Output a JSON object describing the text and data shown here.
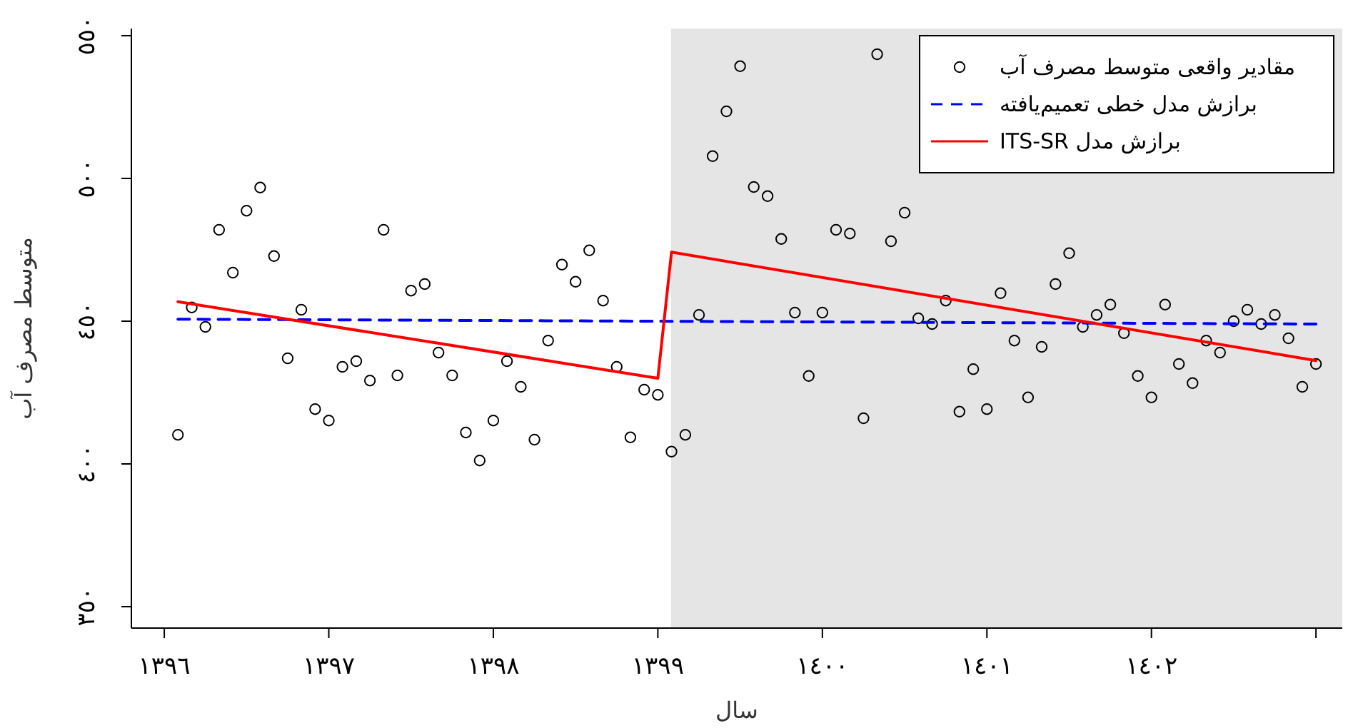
{
  "chart_data": {
    "type": "scatter",
    "xlabel": "سال",
    "ylabel": "متوسط مصرف آب",
    "xlim": [
      1395.8,
      1403.16
    ],
    "ylim": [
      342.5,
      552.5
    ],
    "xticks": [
      {
        "value": 1396,
        "label": "١٣٩٦"
      },
      {
        "value": 1397,
        "label": "١٣٩٧"
      },
      {
        "value": 1398,
        "label": "١٣٩٨"
      },
      {
        "value": 1399,
        "label": "١٣٩٩"
      },
      {
        "value": 1400,
        "label": "١٤٠٠"
      },
      {
        "value": 1401,
        "label": "١٤٠١"
      },
      {
        "value": 1402,
        "label": "١٤٠٢"
      },
      {
        "value": 1403,
        "label": null
      }
    ],
    "yticks": [
      {
        "value": 350,
        "label": "٣٥٠"
      },
      {
        "value": 400,
        "label": "٤٠٠"
      },
      {
        "value": 450,
        "label": "٤٥٠"
      },
      {
        "value": 500,
        "label": "٥٠٠"
      },
      {
        "value": 550,
        "label": "٥٥٠"
      }
    ],
    "bands": [
      {
        "axis": "x",
        "from": 1399.08,
        "to": 1403.16,
        "color": "#e5e5e5"
      }
    ],
    "legend": "top right",
    "grid": false,
    "series": [
      {
        "name": "مقادیر واقعی متوسط مصرف آب",
        "marker": "circle",
        "color": "#000000",
        "x": [
          1396.083,
          1396.167,
          1396.25,
          1396.333,
          1396.417,
          1396.5,
          1396.583,
          1396.667,
          1396.75,
          1396.833,
          1396.917,
          1397,
          1397.083,
          1397.167,
          1397.25,
          1397.333,
          1397.417,
          1397.5,
          1397.583,
          1397.667,
          1397.75,
          1397.833,
          1397.917,
          1398,
          1398.083,
          1398.167,
          1398.25,
          1398.333,
          1398.417,
          1398.5,
          1398.583,
          1398.667,
          1398.75,
          1398.833,
          1398.917,
          1399,
          1399.083,
          1399.167,
          1399.25,
          1399.333,
          1399.417,
          1399.5,
          1399.583,
          1399.667,
          1399.75,
          1399.833,
          1399.917,
          1400,
          1400.083,
          1400.167,
          1400.25,
          1400.333,
          1400.417,
          1400.5,
          1400.583,
          1400.667,
          1400.75,
          1400.833,
          1400.917,
          1401,
          1401.083,
          1401.167,
          1401.25,
          1401.333,
          1401.417,
          1401.5,
          1401.583,
          1401.667,
          1401.75,
          1401.833,
          1401.917,
          1402,
          1402.083,
          1402.167,
          1402.25,
          1402.333,
          1402.417,
          1402.5,
          1402.583,
          1402.667,
          1402.75,
          1402.833,
          1402.917,
          1403
        ],
        "values": [
          410.2,
          454.8,
          448,
          482,
          467,
          488.7,
          496.8,
          472.8,
          437,
          454,
          419.2,
          415.2,
          434,
          436,
          429.2,
          482,
          431,
          460.7,
          463,
          439,
          431,
          411,
          401.2,
          415.2,
          436,
          427,
          408.5,
          443.2,
          469.8,
          463.8,
          474.8,
          457.2,
          434,
          409.3,
          426,
          424.2,
          404.3,
          410.2,
          452.2,
          507.8,
          523.5,
          539.3,
          497,
          493.8,
          478.8,
          453,
          430.8,
          453,
          482,
          480.7,
          416,
          543.5,
          478,
          488,
          451,
          449,
          457.2,
          418.3,
          433.2,
          419.2,
          459.8,
          443.2,
          423.3,
          441,
          463,
          473.8,
          448,
          452.2,
          455.8,
          445.8,
          430.8,
          423.3,
          455.8,
          435,
          428.3,
          443.2,
          439,
          450,
          454,
          449,
          452.2,
          444,
          427,
          435
        ]
      },
      {
        "name": "برازش مدل خطی تعمیم‌یافته",
        "type": "line",
        "line_style": "dashed",
        "color": "#0000ff",
        "x": [
          1396.083,
          1403
        ],
        "values": [
          450.7,
          449
        ]
      },
      {
        "name": "برازش مدل ITS-SR",
        "type": "line",
        "line_style": "solid",
        "color": "#ff0000",
        "x": [
          1396.083,
          1399,
          1399.083,
          1403
        ],
        "values": [
          456.8,
          430,
          474.2,
          436.2
        ]
      }
    ]
  }
}
